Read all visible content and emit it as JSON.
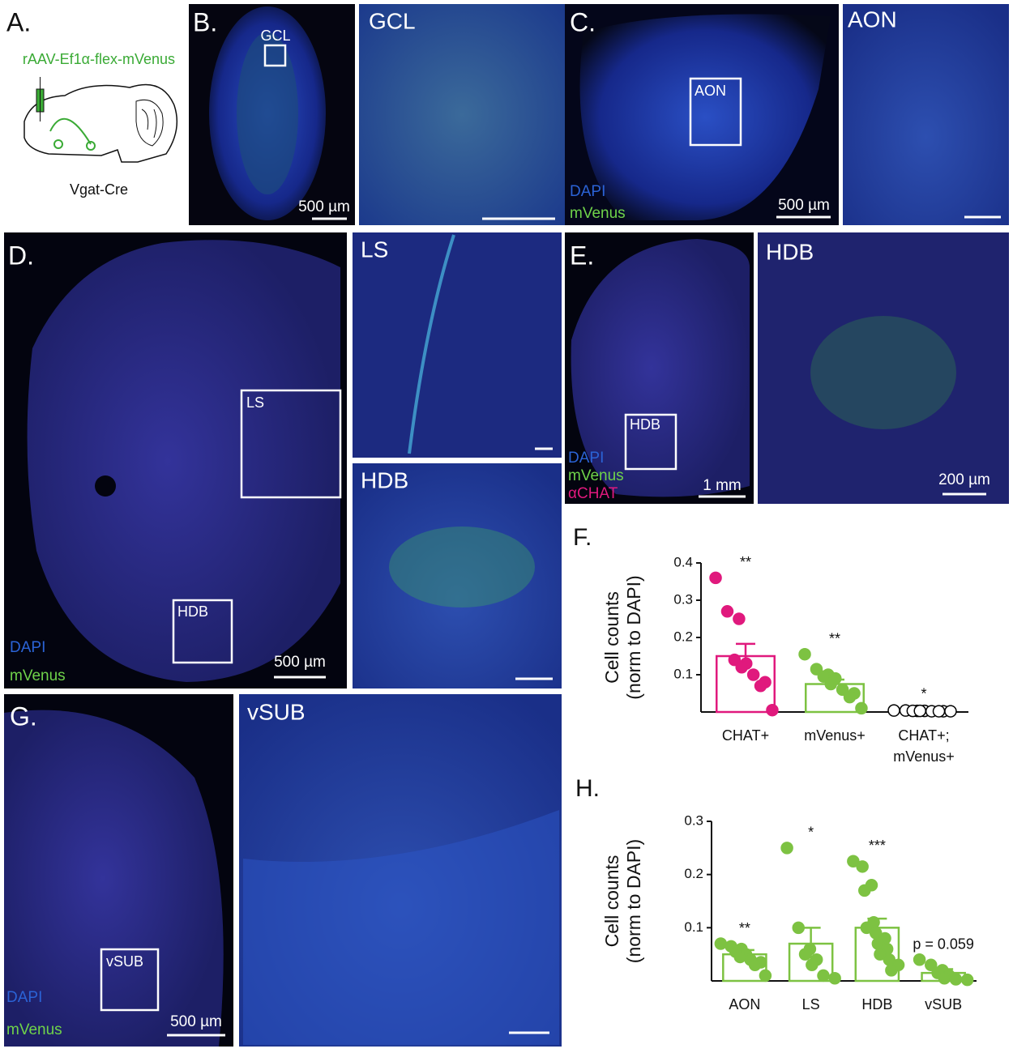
{
  "panels": [
    {
      "label": "A.",
      "texts": [
        "rAAV-Ef1α-flex-mVenus",
        "Vgat-Cre"
      ]
    },
    {
      "label": "B.",
      "texts": [
        "GCL",
        "500 µm"
      ]
    },
    {
      "label": "GCL"
    },
    {
      "label": "C.",
      "texts": [
        "AON",
        "DAPI",
        "mVenus",
        "500 µm"
      ]
    },
    {
      "label": "AON"
    },
    {
      "label": "D.",
      "texts": [
        "LS",
        "HDB",
        "DAPI",
        "mVenus",
        "500 µm"
      ]
    },
    {
      "label": "LS"
    },
    {
      "label": "HDB"
    },
    {
      "label": "E.",
      "texts": [
        "HDB",
        "DAPI",
        "mVenus",
        "αCHAT",
        "1 mm"
      ]
    },
    {
      "label": "HDB",
      "texts": [
        "200 µm"
      ]
    },
    {
      "label": "G.",
      "texts": [
        "vSUB",
        "DAPI",
        "mVenus",
        "500 µm"
      ]
    },
    {
      "label": "vSUB"
    }
  ],
  "chart_data": [
    {
      "type": "bar",
      "title": "F.",
      "ylabel": [
        "Cell counts",
        "(norm to DAPI)"
      ],
      "categories": [
        "CHAT+",
        "mVenus+",
        "CHAT+; mVenus+"
      ],
      "values": [
        0.15,
        0.075,
        0.005
      ],
      "errors": [
        0.033,
        0.012,
        0.002
      ],
      "significance": [
        "**",
        "**",
        "*"
      ],
      "colors": [
        "#e0197d",
        "#7dc242",
        "#000000"
      ],
      "point_fills": [
        "#e0197d",
        "#7dc242",
        "#ffffff"
      ],
      "points": [
        [
          0.36,
          0.27,
          0.25,
          0.14,
          0.13,
          0.12,
          0.1,
          0.08,
          0.07,
          0.005
        ],
        [
          0.155,
          0.115,
          0.1,
          0.095,
          0.09,
          0.075,
          0.06,
          0.05,
          0.04,
          0.01
        ],
        [
          0.004,
          0.004,
          0.003,
          0.003,
          0.003,
          0.003,
          0.002,
          0.002,
          0.002,
          0.002
        ]
      ],
      "ylim": [
        0,
        0.4
      ],
      "yticks": [
        0.1,
        0.2,
        0.3,
        0.4
      ]
    },
    {
      "type": "bar",
      "title": "H.",
      "ylabel": [
        "Cell counts",
        "(norm to DAPI)"
      ],
      "categories": [
        "AON",
        "LS",
        "HDB",
        "vSUB"
      ],
      "values": [
        0.05,
        0.07,
        0.1,
        0.015
      ],
      "errors": [
        0.008,
        0.03,
        0.017,
        0.007
      ],
      "significance": [
        "**",
        "*",
        "***",
        "p = 0.059"
      ],
      "colors": [
        "#7dc242",
        "#7dc242",
        "#7dc242",
        "#7dc242"
      ],
      "point_fills": [
        "#7dc242",
        "#7dc242",
        "#7dc242",
        "#7dc242"
      ],
      "points": [
        [
          0.07,
          0.065,
          0.06,
          0.055,
          0.05,
          0.045,
          0.04,
          0.035,
          0.03,
          0.01
        ],
        [
          0.25,
          0.1,
          0.06,
          0.05,
          0.04,
          0.03,
          0.01,
          0.005
        ],
        [
          0.225,
          0.215,
          0.18,
          0.17,
          0.11,
          0.1,
          0.09,
          0.08,
          0.07,
          0.06,
          0.05,
          0.04,
          0.03,
          0.02
        ],
        [
          0.04,
          0.03,
          0.02,
          0.015,
          0.01,
          0.005,
          0.003,
          0.002
        ]
      ],
      "ylim": [
        0,
        0.3
      ],
      "yticks": [
        0.1,
        0.2,
        0.3
      ]
    }
  ]
}
